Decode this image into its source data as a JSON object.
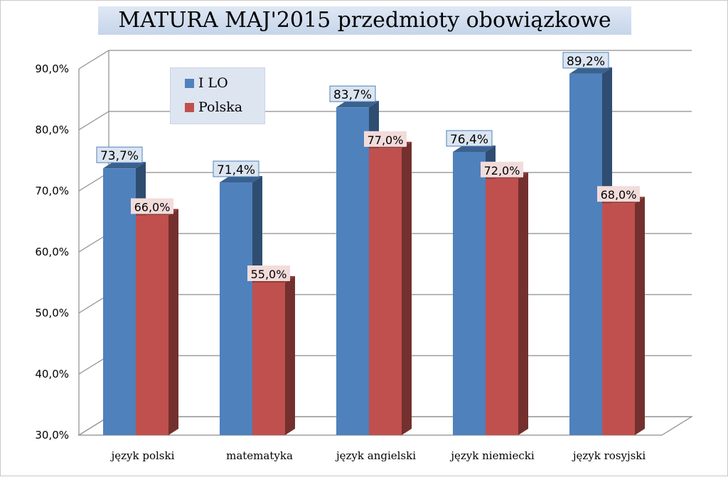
{
  "title": "MATURA MAJ'2015 przedmioty obowiązkowe",
  "legend": {
    "items": [
      {
        "label": "I LO",
        "color": "#4f81bd"
      },
      {
        "label": "Polska",
        "color": "#c0504d"
      }
    ],
    "placement": "top-left"
  },
  "chart_data": {
    "type": "bar",
    "title": "MATURA MAJ'2015 przedmioty obowiązkowe",
    "categories": [
      "język polski",
      "matematyka",
      "język angielski",
      "język niemiecki",
      "język rosyjski"
    ],
    "series": [
      {
        "name": "I LO",
        "values": [
          73.7,
          71.4,
          83.7,
          76.4,
          89.2
        ],
        "labels": [
          "73,7%",
          "71,4%",
          "83,7%",
          "76,4%",
          "89,2%"
        ],
        "color": "#4f81bd"
      },
      {
        "name": "Polska",
        "values": [
          66.0,
          55.0,
          77.0,
          72.0,
          68.0
        ],
        "labels": [
          "66,0%",
          "55,0%",
          "77,0%",
          "72,0%",
          "68,0%"
        ],
        "color": "#c0504d"
      }
    ],
    "yticks": [
      "30,0%",
      "40,0%",
      "50,0%",
      "60,0%",
      "70,0%",
      "80,0%",
      "90,0%"
    ],
    "ylim": [
      30,
      90
    ],
    "xlabel": "",
    "ylabel": "",
    "grid": true,
    "style": "3d"
  }
}
